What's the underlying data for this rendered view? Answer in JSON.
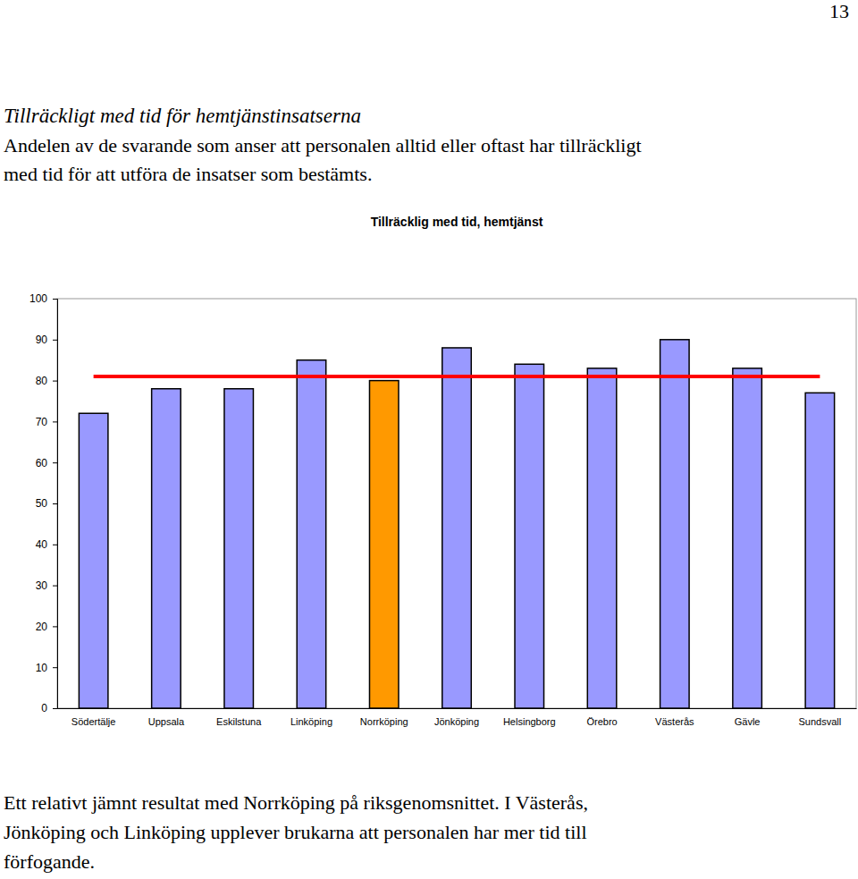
{
  "page": {
    "number": 13,
    "heading": "Tillräckligt med tid för hemtjänstinsatserna",
    "intro": [
      "Andelen av de svarande som anser att personalen alltid eller oftast har tillräckligt",
      "med tid för att utföra de insatser som bestämts."
    ],
    "caption": [
      "Ett relativt jämnt resultat med Norrköping på riksgenomsnittet. I Västerås,",
      "Jönköping och Linköping upplever brukarna att personalen har mer tid till",
      "förfogande."
    ]
  },
  "chart_data": {
    "type": "bar",
    "title": "Tillräcklig med tid, hemtjänst",
    "categories": [
      "Södertälje",
      "Uppsala",
      "Eskilstuna",
      "Linköping",
      "Norrköping",
      "Jönköping",
      "Helsingborg",
      "Örebro",
      "Västerås",
      "Gävle",
      "Sundsvall"
    ],
    "series": [
      {
        "type": "bar",
        "colors": [
          "#9999ff",
          "#9999ff",
          "#9999ff",
          "#9999ff",
          "#ff9900",
          "#9999ff",
          "#9999ff",
          "#9999ff",
          "#9999ff",
          "#9999ff",
          "#9999ff"
        ],
        "values": [
          72,
          78,
          78,
          85,
          80,
          88,
          84,
          83,
          90,
          83,
          77
        ]
      },
      {
        "type": "line",
        "color": "#ff0000",
        "values": [
          81,
          81,
          81,
          81,
          81,
          81,
          81,
          81,
          81,
          81,
          81
        ]
      }
    ],
    "ylim": [
      0,
      100
    ],
    "yticks": [
      0,
      10,
      20,
      30,
      40,
      50,
      60,
      70,
      80,
      90,
      100
    ],
    "grid": false
  }
}
